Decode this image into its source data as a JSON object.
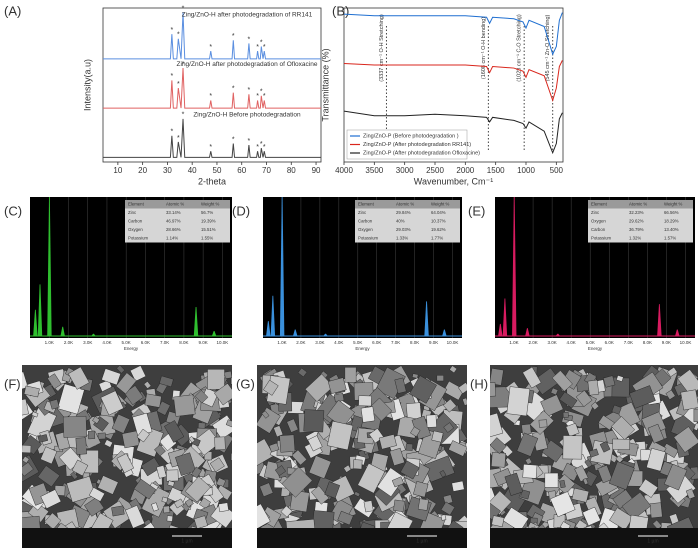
{
  "chart_data": [
    {
      "type": "line",
      "label": "(A)",
      "x_label": "2-theta",
      "y_label": "Intensity(a.u)",
      "xlim": [
        4,
        92
      ],
      "xticks": [
        10,
        20,
        30,
        40,
        50,
        60,
        70,
        80,
        90
      ],
      "ylim": [
        0,
        100
      ],
      "peak_marker": "*",
      "x": [
        4,
        31.2,
        31.8,
        32.4,
        33.8,
        34.4,
        35.5,
        36.3,
        37,
        47,
        47.5,
        48,
        56.1,
        56.6,
        57.1,
        62.4,
        62.9,
        63.4,
        66,
        66.4,
        66.9,
        67.5,
        67.9,
        68.6,
        69.1,
        69.6,
        92
      ],
      "series": [
        {
          "name": "Zing/ZnO-H after photodegradation of RR141",
          "color": "#5b8fe0",
          "values": [
            67,
            67,
            83,
            67,
            67,
            80,
            67,
            97,
            67,
            67,
            72,
            67,
            67,
            79,
            67,
            67,
            77,
            67,
            67,
            72,
            67,
            67,
            75,
            67,
            72,
            67,
            67
          ]
        },
        {
          "name": "Zing/ZnO-H after photodegradation of Ofloxacine",
          "color": "#e06262",
          "values": [
            35,
            35,
            53,
            35,
            35,
            48,
            35,
            61,
            35,
            35,
            40,
            35,
            35,
            45,
            35,
            35,
            44,
            35,
            35,
            40,
            35,
            35,
            43,
            35,
            40,
            35,
            35
          ]
        },
        {
          "name": "Zing/ZnO-H Before photodegradation",
          "color": "#444444",
          "values": [
            3,
            3,
            17,
            3,
            3,
            13,
            3,
            28,
            3,
            3,
            7,
            3,
            3,
            12,
            3,
            3,
            11,
            3,
            3,
            7,
            3,
            3,
            9,
            3,
            7,
            3,
            3
          ]
        }
      ]
    },
    {
      "type": "line",
      "label": "(B)",
      "x_label": "Wavenumber, Cm⁻¹",
      "y_label": "Transmittance (%)",
      "xlim": [
        4000,
        390
      ],
      "xticks": [
        4000,
        3500,
        3000,
        2500,
        2000,
        1500,
        1000,
        500
      ],
      "ylim": [
        0,
        100
      ],
      "legend": "lower-left",
      "x": [
        4000,
        3500,
        3000,
        2500,
        2000,
        1650,
        1600,
        1550,
        1200,
        1050,
        1000,
        950,
        700,
        560,
        500,
        450,
        400
      ],
      "series": [
        {
          "name": "Zing/ZnO-P (Before photodegradation )",
          "color": "#1f6fd1",
          "values": [
            96,
            95,
            95,
            95,
            95,
            94,
            90,
            94,
            93,
            91,
            87,
            92,
            88,
            70,
            75,
            92,
            97
          ]
        },
        {
          "name": "Zing/ZnO-P (After photodegradation RR141)",
          "color": "#d9261c",
          "values": [
            64,
            63,
            63,
            63,
            63,
            62,
            58,
            62,
            61,
            59,
            55,
            60,
            56,
            40,
            48,
            62,
            66
          ]
        },
        {
          "name": "Zing/ZnO-P (After photodegradation Ofloxacine)",
          "color": "#222222",
          "values": [
            33,
            30,
            30,
            31,
            30,
            29,
            26,
            29,
            27,
            25,
            22,
            26,
            20,
            6,
            12,
            28,
            32
          ]
        }
      ],
      "annotations": [
        {
          "x": 3300,
          "text": "(3337 cm⁻¹ O-H Stretching)"
        },
        {
          "x": 1620,
          "text": "(1608 cm⁻¹ O-H bending)"
        },
        {
          "x": 1030,
          "text": "(1028 cm⁻¹ C-O Stretching)"
        },
        {
          "x": 560,
          "text": "(545 cm⁻¹ Zn-O Stretching)"
        }
      ]
    },
    {
      "type": "spectrum",
      "label": "(C)",
      "x_label": "Energy",
      "color": "#2fbf2f",
      "grid": true,
      "xlim": [
        0,
        10.5
      ],
      "ylim": [
        0,
        100
      ],
      "xticks": [
        {
          "value": 1,
          "label": "1.0K"
        },
        {
          "value": 2,
          "label": "2.0K"
        },
        {
          "value": 3,
          "label": "3.0K"
        },
        {
          "value": 4,
          "label": "4.0K"
        },
        {
          "value": 5,
          "label": "5.0K"
        },
        {
          "value": 6,
          "label": "6.0K"
        },
        {
          "value": 7,
          "label": "7.0K"
        },
        {
          "value": 8,
          "label": "8.0K"
        },
        {
          "value": 9,
          "label": "9.0K"
        },
        {
          "value": 10,
          "label": "10.0K"
        }
      ],
      "x": [
        0.28,
        0.52,
        1.01,
        1.7,
        3.3,
        8.63,
        9.57
      ],
      "values": [
        20,
        38,
        100,
        8,
        3,
        22,
        5
      ],
      "table": {
        "header": [
          "Element",
          "Atomic %",
          "Weight %"
        ],
        "rows": [
          [
            "Zinc",
            "33.14%",
            "56.7%"
          ],
          [
            "Carbon",
            "46.97%",
            "19.39%"
          ],
          [
            "Oxygen",
            "28.66%",
            "15.51%"
          ],
          [
            "Potassium",
            "1.14%",
            "1.55%"
          ]
        ]
      }
    },
    {
      "type": "spectrum",
      "label": "(D)",
      "x_label": "Energy",
      "color": "#3a90dc",
      "grid": true,
      "xlim": [
        0,
        10.5
      ],
      "ylim": [
        0,
        100
      ],
      "xticks": [
        {
          "value": 1,
          "label": "1.0K"
        },
        {
          "value": 2,
          "label": "2.0K"
        },
        {
          "value": 3,
          "label": "3.0K"
        },
        {
          "value": 4,
          "label": "4.0K"
        },
        {
          "value": 5,
          "label": "5.0K"
        },
        {
          "value": 6,
          "label": "6.0K"
        },
        {
          "value": 7,
          "label": "7.0K"
        },
        {
          "value": 8,
          "label": "8.0K"
        },
        {
          "value": 9,
          "label": "9.0K"
        },
        {
          "value": 10,
          "label": "10.0K"
        }
      ],
      "x": [
        0.28,
        0.52,
        1.01,
        1.7,
        3.3,
        8.63,
        9.57
      ],
      "values": [
        12,
        30,
        100,
        6,
        3,
        26,
        6
      ],
      "table": {
        "header": [
          "Element",
          "Atomic %",
          "Weight %"
        ],
        "rows": [
          [
            "Zinc",
            "29.84%",
            "64.04%"
          ],
          [
            "Carbon",
            "40%",
            "10.37%"
          ],
          [
            "Oxygen",
            "29.03%",
            "19.62%"
          ],
          [
            "Potassium",
            "1.33%",
            "1.77%"
          ]
        ]
      }
    },
    {
      "type": "spectrum",
      "label": "(E)",
      "x_label": "Energy",
      "color": "#d81b60",
      "grid": true,
      "xlim": [
        0,
        10.5
      ],
      "ylim": [
        0,
        100
      ],
      "xticks": [
        {
          "value": 1,
          "label": "1.0K"
        },
        {
          "value": 2,
          "label": "2.0K"
        },
        {
          "value": 3,
          "label": "3.0K"
        },
        {
          "value": 4,
          "label": "4.0K"
        },
        {
          "value": 5,
          "label": "5.0K"
        },
        {
          "value": 6,
          "label": "6.0K"
        },
        {
          "value": 7,
          "label": "7.0K"
        },
        {
          "value": 8,
          "label": "8.0K"
        },
        {
          "value": 9,
          "label": "9.0K"
        },
        {
          "value": 10,
          "label": "10.0K"
        }
      ],
      "x": [
        0.28,
        0.52,
        1.01,
        1.7,
        3.3,
        8.63,
        9.57
      ],
      "values": [
        10,
        28,
        100,
        7,
        3,
        24,
        6
      ],
      "table": {
        "header": [
          "Element",
          "Atomic %",
          "Weight %"
        ],
        "rows": [
          [
            "Zinc",
            "32.23%",
            "66.56%"
          ],
          [
            "Oxygen",
            "29.62%",
            "18.29%"
          ],
          [
            "Carbon",
            "36.79%",
            "13.40%"
          ],
          [
            "Potassium",
            "1.32%",
            "1.57%"
          ]
        ]
      }
    }
  ],
  "sem": [
    {
      "label": "(F)",
      "scale": "1 µm"
    },
    {
      "label": "(G)",
      "scale": "1 µm"
    },
    {
      "label": "(H)",
      "scale": "1 µm"
    }
  ]
}
